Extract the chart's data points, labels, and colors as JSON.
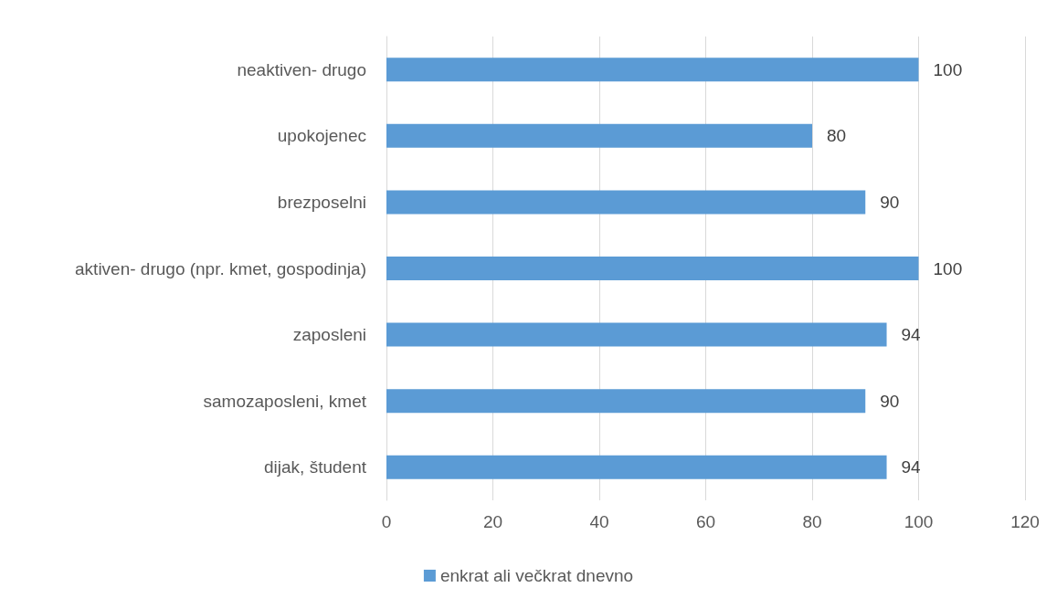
{
  "chart_data": {
    "type": "bar",
    "orientation": "horizontal",
    "categories": [
      "neaktiven- drugo",
      "upokojenec",
      "brezposelni",
      "aktiven- drugo (npr. kmet, gospodinja)",
      "zaposleni",
      "samozaposleni, kmet",
      "dijak, študent"
    ],
    "series": [
      {
        "name": "enkrat ali večkrat dnevno",
        "color": "#5b9bd5",
        "values": [
          100,
          80,
          90,
          100,
          94,
          90,
          94
        ]
      }
    ],
    "xlim": [
      0,
      120
    ],
    "xticks": [
      0,
      20,
      40,
      60,
      80,
      100,
      120
    ],
    "grid": "x",
    "legend": "bottom",
    "data_labels": true
  }
}
